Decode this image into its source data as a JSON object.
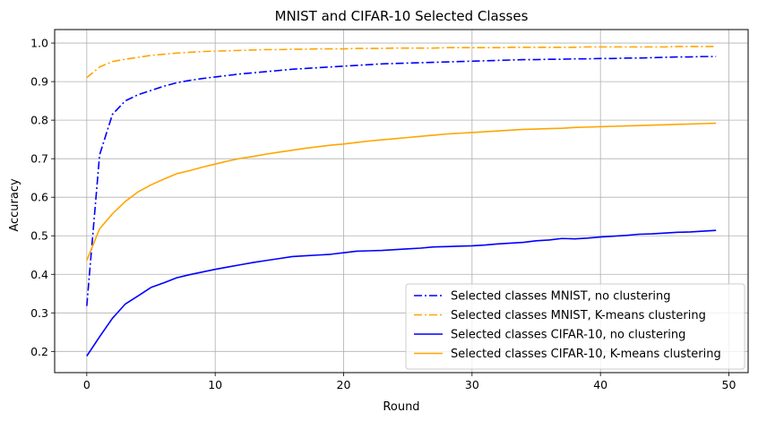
{
  "chart_data": {
    "type": "line",
    "title": "MNIST and CIFAR-10 Selected Classes",
    "xlabel": "Round",
    "ylabel": "Accuracy",
    "xlim": [
      -2.5,
      51.5
    ],
    "ylim": [
      0.145,
      1.035
    ],
    "xticks": [
      0,
      10,
      20,
      30,
      40,
      50
    ],
    "yticks": [
      0.2,
      0.3,
      0.4,
      0.5,
      0.6,
      0.7,
      0.8,
      0.9,
      1.0
    ],
    "grid": true,
    "legend_position": "lower-right",
    "series": [
      {
        "name": "Selected classes MNIST, no clustering",
        "color": "#0000ff",
        "dash": "dashdot",
        "x": [
          0,
          1,
          2,
          3,
          4,
          5,
          6,
          7,
          8,
          9,
          10,
          11,
          12,
          13,
          14,
          15,
          16,
          17,
          18,
          19,
          20,
          21,
          22,
          23,
          24,
          25,
          26,
          27,
          28,
          29,
          30,
          31,
          32,
          33,
          34,
          35,
          36,
          37,
          38,
          39,
          40,
          41,
          42,
          43,
          44,
          45,
          46,
          47,
          48,
          49
        ],
        "y": [
          0.318,
          0.71,
          0.815,
          0.85,
          0.866,
          0.877,
          0.888,
          0.897,
          0.903,
          0.908,
          0.912,
          0.916,
          0.92,
          0.923,
          0.926,
          0.929,
          0.932,
          0.934,
          0.936,
          0.938,
          0.94,
          0.942,
          0.944,
          0.946,
          0.947,
          0.948,
          0.949,
          0.95,
          0.951,
          0.952,
          0.953,
          0.954,
          0.955,
          0.956,
          0.957,
          0.957,
          0.958,
          0.958,
          0.959,
          0.959,
          0.96,
          0.96,
          0.961,
          0.961,
          0.962,
          0.963,
          0.964,
          0.964,
          0.965,
          0.965
        ]
      },
      {
        "name": "Selected classes MNIST, K-means clustering",
        "color": "#ffa500",
        "dash": "dashdot",
        "x": [
          0,
          1,
          2,
          3,
          4,
          5,
          6,
          7,
          8,
          9,
          10,
          11,
          12,
          13,
          14,
          15,
          16,
          17,
          18,
          19,
          20,
          21,
          22,
          23,
          24,
          25,
          26,
          27,
          28,
          29,
          30,
          31,
          32,
          33,
          34,
          35,
          36,
          37,
          38,
          39,
          40,
          41,
          42,
          43,
          44,
          45,
          46,
          47,
          48,
          49
        ],
        "y": [
          0.91,
          0.938,
          0.952,
          0.958,
          0.963,
          0.968,
          0.971,
          0.974,
          0.976,
          0.978,
          0.979,
          0.98,
          0.981,
          0.982,
          0.983,
          0.983,
          0.984,
          0.984,
          0.985,
          0.985,
          0.985,
          0.986,
          0.986,
          0.986,
          0.987,
          0.987,
          0.987,
          0.987,
          0.988,
          0.988,
          0.988,
          0.988,
          0.988,
          0.989,
          0.989,
          0.989,
          0.989,
          0.989,
          0.989,
          0.99,
          0.99,
          0.99,
          0.99,
          0.99,
          0.99,
          0.99,
          0.991,
          0.991,
          0.991,
          0.991
        ]
      },
      {
        "name": "Selected classes CIFAR-10, no clustering",
        "color": "#0000ff",
        "dash": "solid",
        "x": [
          0,
          1,
          2,
          3,
          4,
          5,
          6,
          7,
          8,
          9,
          10,
          11,
          12,
          13,
          14,
          15,
          16,
          17,
          18,
          19,
          20,
          21,
          22,
          23,
          24,
          25,
          26,
          27,
          28,
          29,
          30,
          31,
          32,
          33,
          34,
          35,
          36,
          37,
          38,
          39,
          40,
          41,
          42,
          43,
          44,
          45,
          46,
          47,
          48,
          49
        ],
        "y": [
          0.188,
          0.238,
          0.286,
          0.323,
          0.344,
          0.366,
          0.378,
          0.391,
          0.399,
          0.406,
          0.413,
          0.419,
          0.425,
          0.431,
          0.436,
          0.441,
          0.446,
          0.448,
          0.45,
          0.452,
          0.456,
          0.46,
          0.461,
          0.462,
          0.464,
          0.466,
          0.468,
          0.471,
          0.472,
          0.473,
          0.474,
          0.476,
          0.479,
          0.481,
          0.483,
          0.487,
          0.489,
          0.493,
          0.492,
          0.494,
          0.497,
          0.499,
          0.501,
          0.504,
          0.505,
          0.507,
          0.509,
          0.51,
          0.512,
          0.514
        ]
      },
      {
        "name": "Selected classes CIFAR-10, K-means clustering",
        "color": "#ffa500",
        "dash": "solid",
        "x": [
          0,
          1,
          2,
          3,
          4,
          5,
          6,
          7,
          8,
          9,
          10,
          11,
          12,
          13,
          14,
          15,
          16,
          17,
          18,
          19,
          20,
          21,
          22,
          23,
          24,
          25,
          26,
          27,
          28,
          29,
          30,
          31,
          32,
          33,
          34,
          35,
          36,
          37,
          38,
          39,
          40,
          41,
          42,
          43,
          44,
          45,
          46,
          47,
          48,
          49
        ],
        "y": [
          0.436,
          0.518,
          0.557,
          0.589,
          0.614,
          0.632,
          0.647,
          0.661,
          0.669,
          0.678,
          0.686,
          0.694,
          0.701,
          0.706,
          0.712,
          0.717,
          0.722,
          0.727,
          0.731,
          0.735,
          0.738,
          0.742,
          0.746,
          0.749,
          0.752,
          0.755,
          0.758,
          0.761,
          0.764,
          0.766,
          0.768,
          0.77,
          0.772,
          0.774,
          0.776,
          0.777,
          0.778,
          0.779,
          0.781,
          0.782,
          0.783,
          0.784,
          0.785,
          0.786,
          0.787,
          0.788,
          0.789,
          0.79,
          0.791,
          0.792
        ]
      }
    ]
  }
}
